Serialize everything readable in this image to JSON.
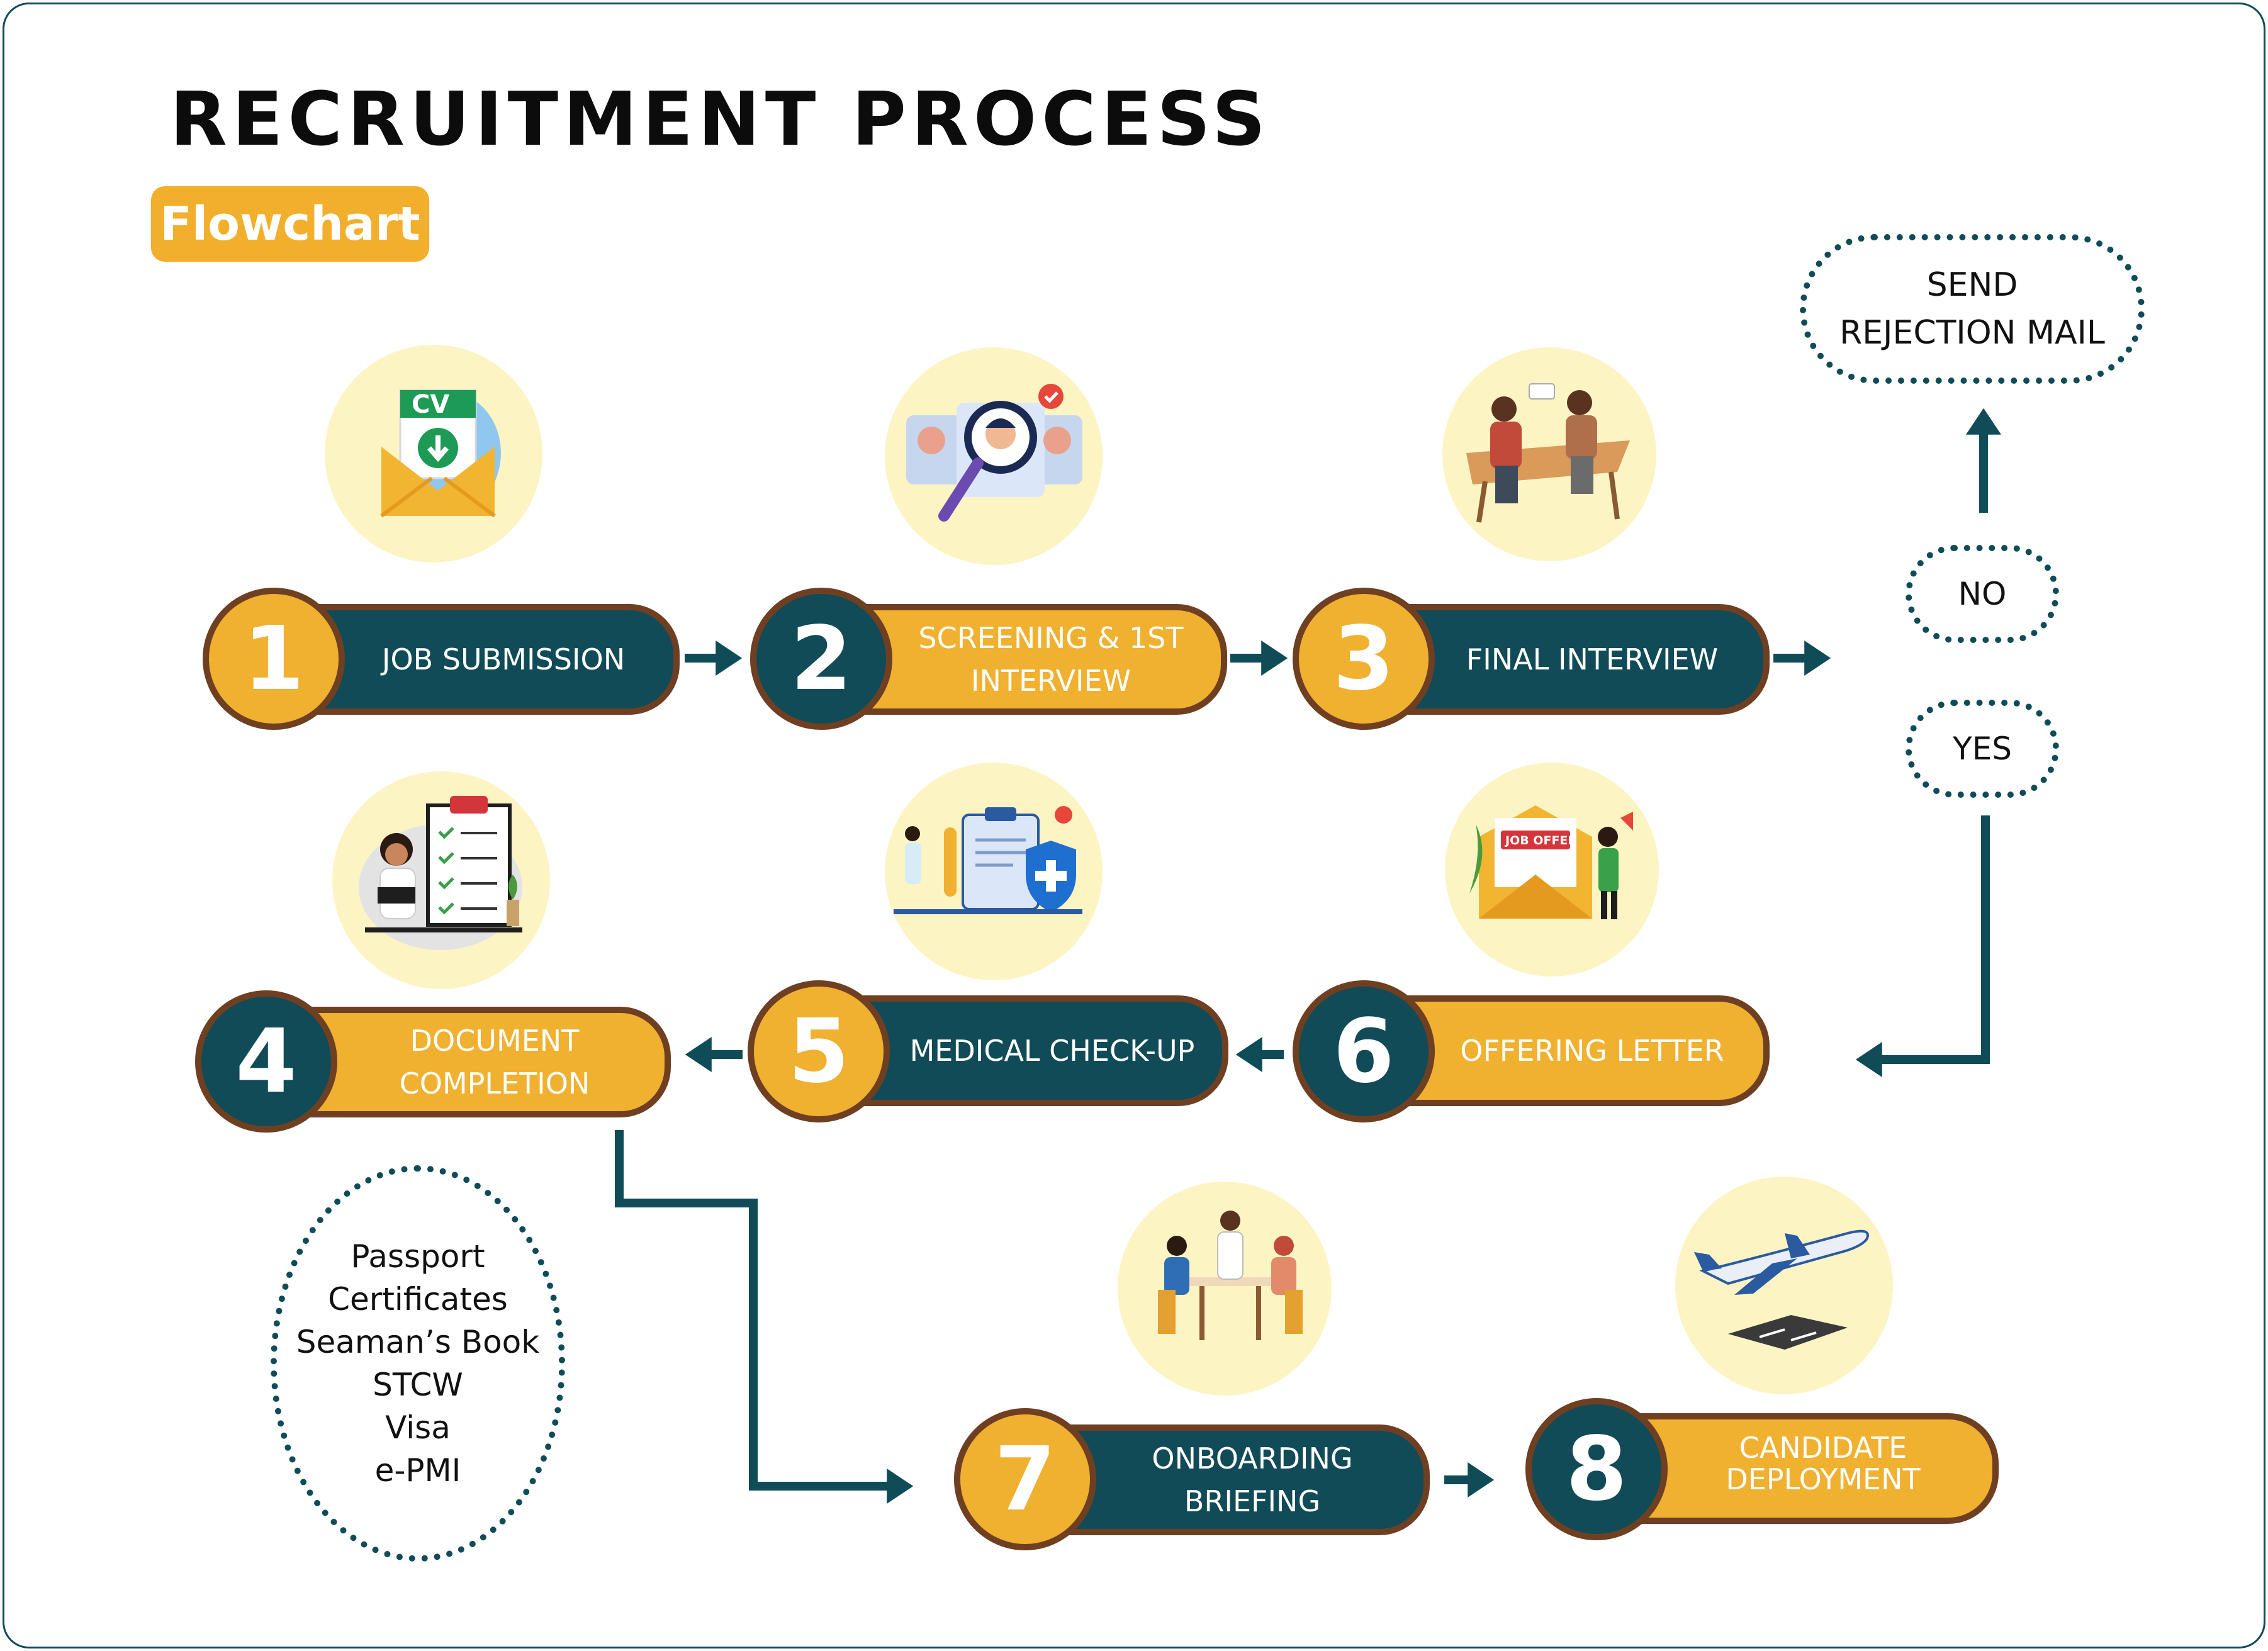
{
  "title": "RECRUITMENT PROCESS",
  "badge": "Flowchart",
  "steps": [
    {
      "number": "1",
      "label": "JOB SUBMISSION"
    },
    {
      "number": "2",
      "label": "SCREENING & 1ST\nINTERVIEW"
    },
    {
      "number": "3",
      "label": "FINAL INTERVIEW"
    },
    {
      "number": "4",
      "label": "DOCUMENT\nCOMPLETION"
    },
    {
      "number": "5",
      "label": "MEDICAL CHECK-UP"
    },
    {
      "number": "6",
      "label": "OFFERING LETTER"
    },
    {
      "number": "7",
      "label": "ONBOARDING\nBRIEFING"
    },
    {
      "number": "8",
      "label": "CANDIDATE\nDEPLOYMENT"
    }
  ],
  "decision": {
    "no": "NO",
    "yes": "YES",
    "reject": "SEND\nREJECTION MAIL"
  },
  "documents": "Passport\nCertificates\nSeaman’s Book\nSTCW\nVisa\ne-PMI",
  "icon_texts": {
    "cv": "CV",
    "job_offer": "JOB OFFER"
  },
  "colors": {
    "teal": "#104b57",
    "gold": "#f0b030",
    "pill_border": "#6f3f22",
    "bubble": "#fdf4c4",
    "frame": "#0f4c57"
  }
}
